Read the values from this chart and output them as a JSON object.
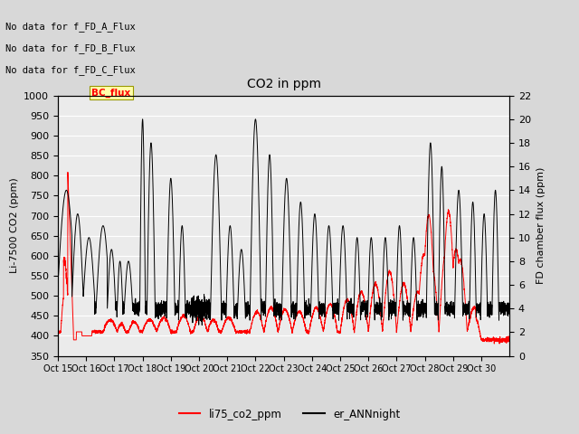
{
  "title": "CO2 in ppm",
  "ylabel_left": "Li-7500 CO2 (ppm)",
  "ylabel_right": "FD chamber flux (ppm)",
  "ylim_left": [
    350,
    1000
  ],
  "ylim_right": [
    0,
    22
  ],
  "bg_color": "#e0e0e0",
  "plot_bg_color": "#ebebeb",
  "annotations": [
    "No data for f_FD_A_Flux",
    "No data for f_FD_B_Flux",
    "No data for f_FD_C_Flux"
  ],
  "bc_flux_label": "BC_flux",
  "legend_labels": [
    "li75_co2_ppm",
    "er_ANNnight"
  ],
  "xtick_labels": [
    "Oct 15",
    "Oct 16",
    "Oct 17",
    "Oct 18",
    "Oct 19",
    "Oct 20",
    "Oct 21",
    "Oct 22",
    "Oct 23",
    "Oct 24",
    "Oct 25",
    "Oct 26",
    "Oct 27",
    "Oct 28",
    "Oct 29",
    "Oct 30"
  ]
}
